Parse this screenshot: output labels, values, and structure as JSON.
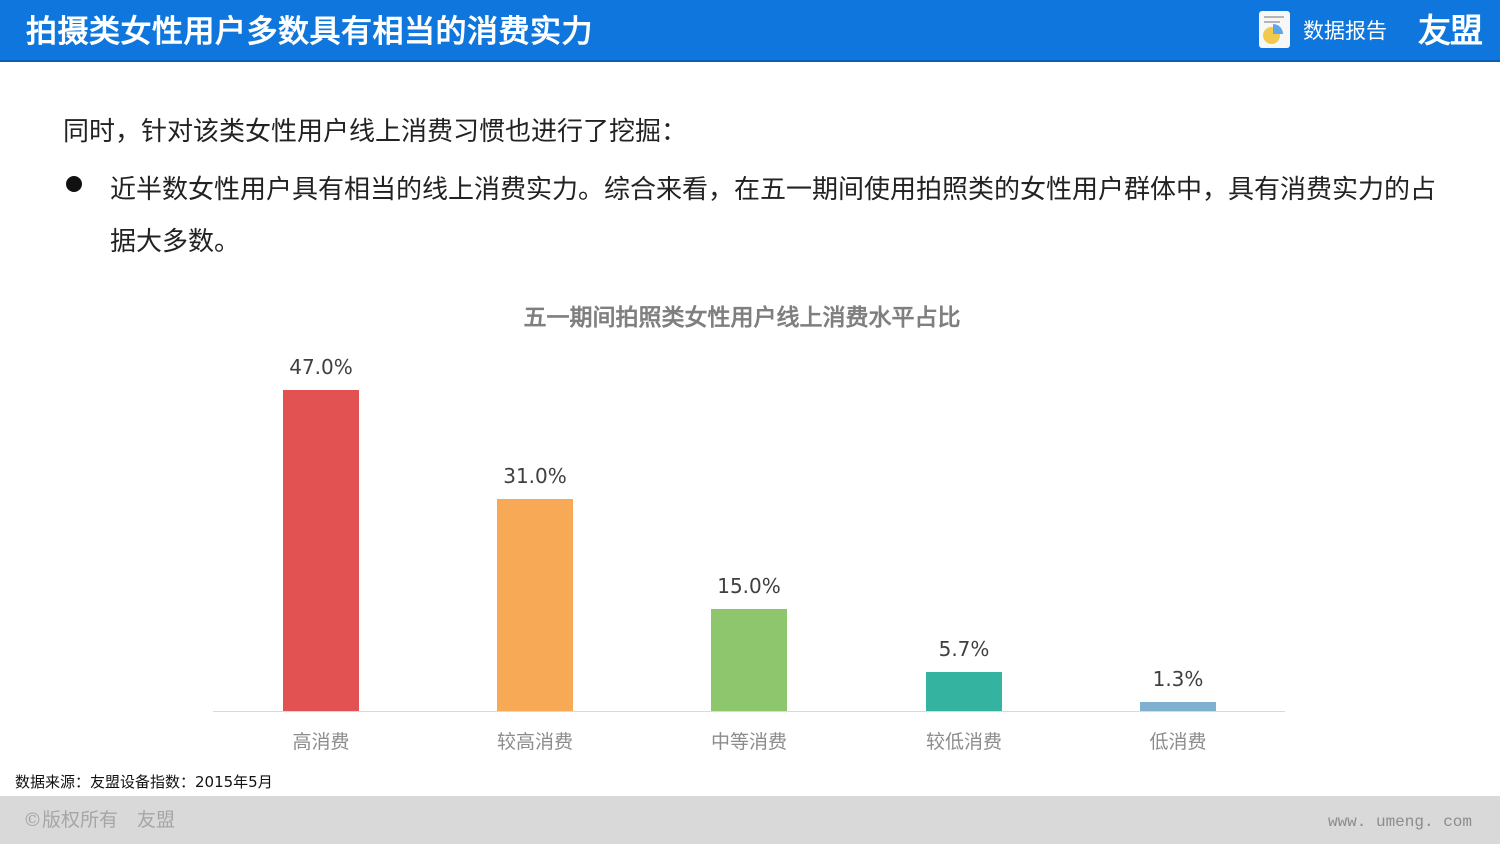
{
  "header": {
    "title": "拍摄类女性用户多数具有相当的消费实力",
    "report_icon": "report-document-icon",
    "report_label": "数据报告",
    "brand": "友盟",
    "background_color": "#0f76dd"
  },
  "body": {
    "intro": "同时，针对该类女性用户线上消费习惯也进行了挖掘：",
    "bullets": [
      {
        "icon": "bullet-dot-icon",
        "text": "近半数女性用户具有相当的线上消费实力。综合来看，在五一期间使用拍照类的女性用户群体中，具有消费实力的占据大多数。"
      }
    ]
  },
  "chart_data": {
    "type": "bar",
    "title": "五一期间拍照类女性用户线上消费水平占比",
    "xlabel": "",
    "ylabel": "",
    "categories": [
      "高消费",
      "较高消费",
      "中等消费",
      "较低消费",
      "低消费"
    ],
    "values": [
      47.0,
      31.0,
      15.0,
      5.7,
      1.3
    ],
    "value_labels": [
      "47.0%",
      "31.0%",
      "15.0%",
      "5.7%",
      "1.3%"
    ],
    "colors": [
      "#e35252",
      "#f8a955",
      "#8dc66c",
      "#34b3a0",
      "#7fb0cf"
    ],
    "unit": "%",
    "ylim": [
      0,
      47
    ],
    "grid": false,
    "legend": "none",
    "data_labels": true
  },
  "source": "数据来源：友盟设备指数：2015年5月",
  "footer": {
    "copyright": "©版权所有　友盟",
    "website": "www. umeng. com"
  }
}
